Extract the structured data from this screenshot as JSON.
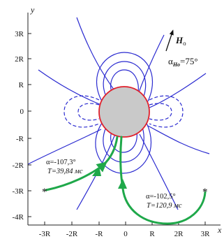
{
  "axes": {
    "x_label": "x",
    "y_label": "y",
    "x_ticks": [
      "-3R",
      "-2R",
      "-R",
      "0",
      "R",
      "2R",
      "3R"
    ],
    "y_ticks": [
      "3R",
      "2R",
      "R",
      "0",
      "-R",
      "-2R",
      "-3R",
      "-4R"
    ]
  },
  "field": {
    "symbol": "H",
    "subscript": "o",
    "angle_text": "α",
    "angle_sub": "Ho",
    "angle_value": "=75°"
  },
  "trajectories": [
    {
      "alpha": "α=-107,3°",
      "period": "T=39,84 мс"
    },
    {
      "alpha": "α=-102,5°",
      "period": "T=120,9 мс"
    }
  ],
  "start_markers": [
    "*",
    "*"
  ],
  "colors": {
    "field_lines": "#2a2ad0",
    "trajectory": "#1fa84a",
    "sphere_fill": "#c9c9c9",
    "sphere_edge": "#e0202c",
    "axis": "#222222"
  }
}
